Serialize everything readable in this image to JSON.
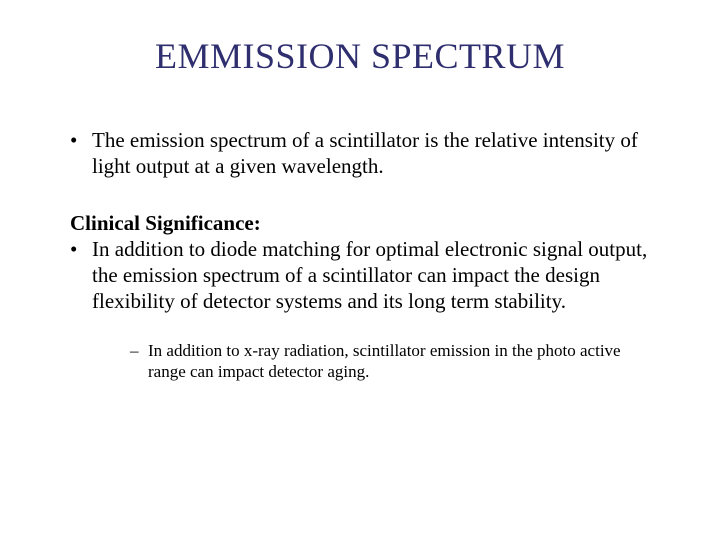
{
  "title": {
    "text": "EMMISSION SPECTRUM",
    "color": "#2f2f6f",
    "fontsize": 36
  },
  "body": {
    "bullet1": "The emission spectrum of a scintillator is the relative intensity of light output at a given wavelength.",
    "subheading": "Clinical Significance:",
    "bullet2": "In addition to diode matching for optimal electronic signal output, the emission spectrum of a scintillator can impact the design flexibility of detector systems and its long term stability.",
    "subbullet1": "In addition to x-ray radiation, scintillator emission in the photo active range can impact detector aging.",
    "text_color": "#000000",
    "fontsize": 21,
    "sub_fontsize": 17
  },
  "background_color": "#ffffff"
}
